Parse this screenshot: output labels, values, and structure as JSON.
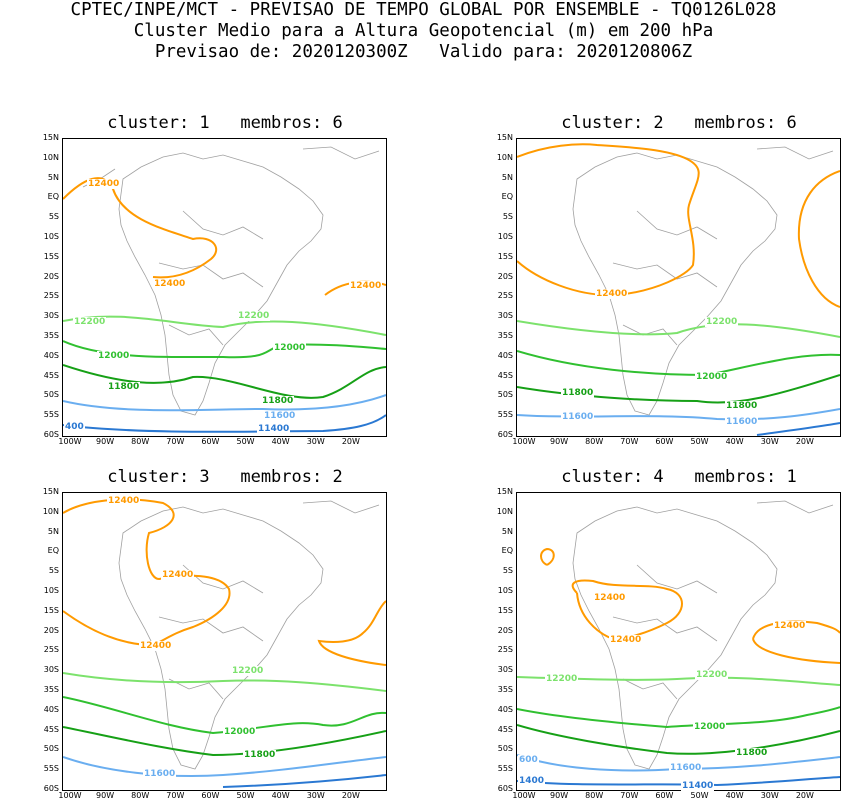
{
  "header": {
    "line1": "CPTEC/INPE/MCT - PREVISAO DE TEMPO GLOBAL POR ENSEMBLE - TQ0126L028",
    "line2": "Cluster Medio para a Altura Geopotencial (m) em 200 hPa",
    "line3": "Previsao de: 2020120300Z   Valido para: 2020120806Z"
  },
  "lat_labels": [
    "15N",
    "10N",
    "5N",
    "EQ",
    "5S",
    "10S",
    "15S",
    "20S",
    "25S",
    "30S",
    "35S",
    "40S",
    "45S",
    "50S",
    "55S",
    "60S"
  ],
  "lon_labels": [
    "100W",
    "90W",
    "80W",
    "70W",
    "60W",
    "50W",
    "40W",
    "30W",
    "20W"
  ],
  "colors": {
    "c12400": "#ff9a00",
    "c12200": "#7ce26c",
    "c12000": "#30c030",
    "c11800": "#16a016",
    "c11600": "#6aaef0",
    "c11400": "#2a78d2",
    "coast": "#a0a0a0"
  },
  "panels": [
    {
      "title": "cluster: 1   membros: 6",
      "contour_labels": [
        "12400",
        "12400",
        "12400",
        "12200",
        "12200",
        "12000",
        "12000",
        "11800",
        "11800",
        "11600",
        "11400",
        "400"
      ]
    },
    {
      "title": "cluster: 2   membros: 6",
      "contour_labels": [
        "12400",
        "12200",
        "12000",
        "11800",
        "11800",
        "11600",
        "11600"
      ]
    },
    {
      "title": "cluster: 3   membros: 2",
      "contour_labels": [
        "12400",
        "12400",
        "12400",
        "12200",
        "12000",
        "11800",
        "11600"
      ]
    },
    {
      "title": "cluster: 4   membros: 1",
      "contour_labels": [
        "12400",
        "12400",
        "12400",
        "12200",
        "12200",
        "12000",
        "11800",
        "11600",
        "11400",
        "600",
        "1400"
      ]
    }
  ]
}
